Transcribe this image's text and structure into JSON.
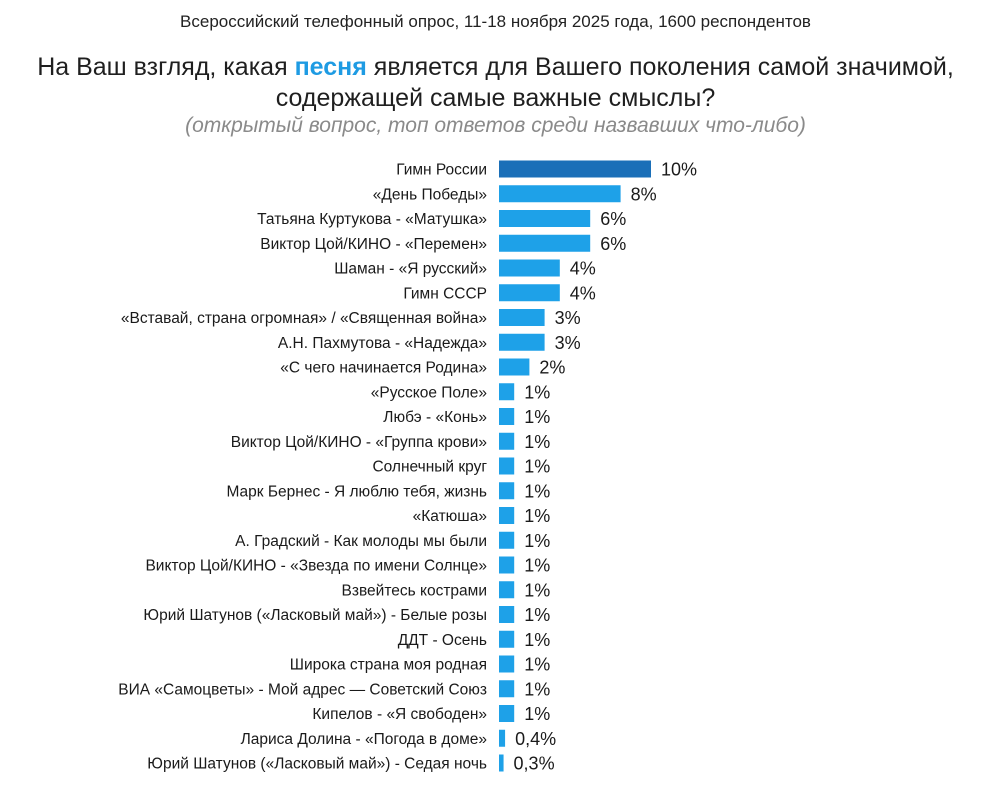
{
  "header": {
    "survey_caption": "Всероссийский телефонный опрос, 11-18 ноября 2025 года, 1600 респондентов",
    "question_part1": "На Ваш взгляд, какая ",
    "question_highlight": "песня",
    "question_part2": " является для Вашего поколения самой значимой,",
    "question_line2": "содержащей самые важные смыслы?",
    "note": "(открытый вопрос, топ ответов среди назвавших что-либо)"
  },
  "colors": {
    "highlight_word": "#1e9be3",
    "bar_top": "#1a6fb8",
    "bar": "#1ea1e8"
  },
  "chart_data": {
    "type": "bar",
    "orientation": "horizontal",
    "categories": [
      "Гимн России",
      "«День Победы»",
      "Татьяна Куртукова - «Матушка»",
      "Виктор Цой/КИНО - «Перемен»",
      "Шаман - «Я русский»",
      "Гимн СССР",
      "«Вставай, страна огромная» / «Священная война»",
      "А.Н. Пахмутова - «Надежда»",
      "«С чего начинается Родина»",
      "«Русское Поле»",
      "Любэ - «Конь»",
      "Виктор Цой/КИНО - «Группа крови»",
      "Солнечный круг",
      "Марк Бернес - Я люблю тебя, жизнь",
      "«Катюша»",
      "А. Градский - Как молоды мы были",
      "Виктор Цой/КИНО - «Звезда по имени Солнце»",
      "Взвейтесь кострами",
      "Юрий Шатунов («Ласковый май») - Белые розы",
      "ДДТ - Осень",
      "Широка страна моя родная",
      "ВИА «Самоцветы» - Мой адрес — Советский Союз",
      "Кипелов - «Я свободен»",
      "Лариса Долина - «Погода в доме»",
      "Юрий Шатунов («Ласковый май») - Седая ночь"
    ],
    "values": [
      10,
      8,
      6,
      6,
      4,
      4,
      3,
      3,
      2,
      1,
      1,
      1,
      1,
      1,
      1,
      1,
      1,
      1,
      1,
      1,
      1,
      1,
      1,
      0.4,
      0.3
    ],
    "labels": [
      "10%",
      "8%",
      "6%",
      "6%",
      "4%",
      "4%",
      "3%",
      "3%",
      "2%",
      "1%",
      "1%",
      "1%",
      "1%",
      "1%",
      "1%",
      "1%",
      "1%",
      "1%",
      "1%",
      "1%",
      "1%",
      "1%",
      "1%",
      "0,4%",
      "0,3%"
    ],
    "unit": "%",
    "xlim": [
      0,
      10
    ],
    "grid": false,
    "legend": "none"
  }
}
